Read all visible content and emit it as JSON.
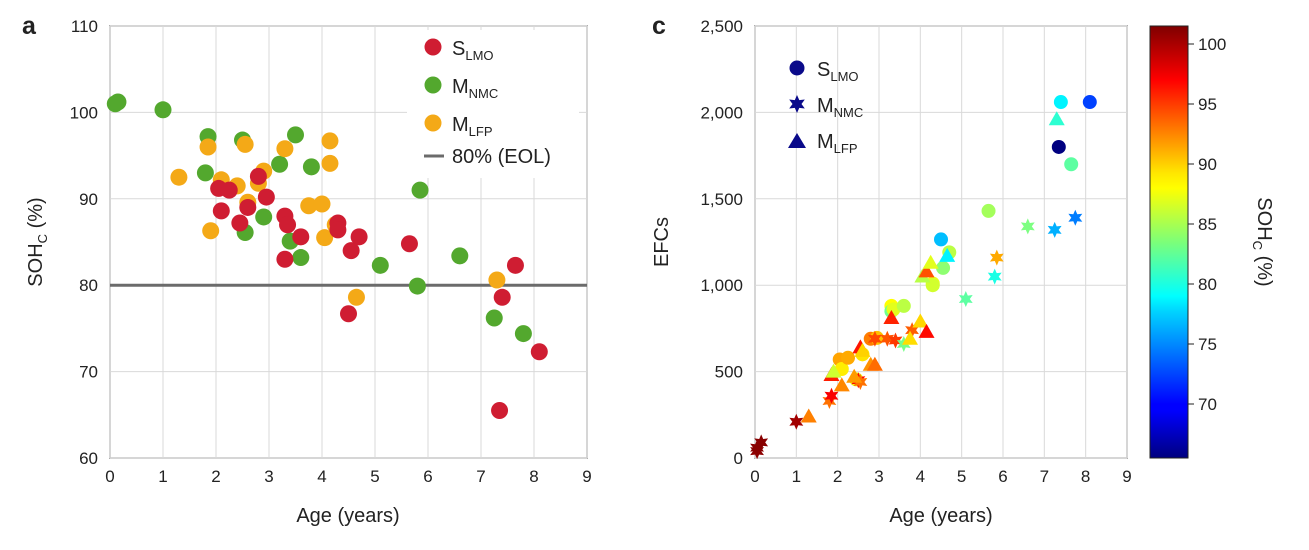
{
  "chart_data": [
    {
      "panel": "a",
      "type": "scatter",
      "xlabel": "Age (years)",
      "ylabel": {
        "main": "SOH",
        "sub": "C",
        "unit": " (%)"
      },
      "xlim": [
        0,
        9
      ],
      "ylim": [
        60,
        110
      ],
      "xticks": [
        0,
        1,
        2,
        3,
        4,
        5,
        6,
        7,
        8,
        9
      ],
      "yticks": [
        60,
        70,
        80,
        90,
        100,
        110
      ],
      "grid": true,
      "legend_position": "top-right",
      "eol_line": {
        "y": 80,
        "label": "80% (EOL)",
        "color": "#6b6b6b"
      },
      "series": [
        {
          "name": "S",
          "sub": "LMO",
          "color": "#cf1d32",
          "points": [
            [
              2.05,
              91.2
            ],
            [
              2.1,
              88.6
            ],
            [
              2.25,
              91.0
            ],
            [
              2.45,
              87.2
            ],
            [
              2.6,
              89.0
            ],
            [
              2.8,
              92.6
            ],
            [
              2.95,
              90.2
            ],
            [
              3.3,
              88.0
            ],
            [
              3.3,
              83.0
            ],
            [
              3.35,
              87.0
            ],
            [
              3.6,
              85.6
            ],
            [
              4.3,
              87.2
            ],
            [
              4.3,
              86.4
            ],
            [
              4.55,
              84.0
            ],
            [
              4.7,
              85.6
            ],
            [
              4.5,
              76.7
            ],
            [
              5.65,
              84.8
            ],
            [
              7.35,
              65.5
            ],
            [
              7.4,
              78.6
            ],
            [
              7.65,
              82.3
            ],
            [
              8.1,
              72.3
            ]
          ]
        },
        {
          "name": "M",
          "sub": "NMC",
          "color": "#53a82e",
          "points": [
            [
              0.1,
              101.0
            ],
            [
              0.15,
              101.2
            ],
            [
              1.0,
              100.3
            ],
            [
              1.8,
              93.0
            ],
            [
              1.85,
              97.2
            ],
            [
              2.5,
              96.8
            ],
            [
              2.55,
              86.1
            ],
            [
              2.9,
              87.9
            ],
            [
              3.2,
              94.0
            ],
            [
              3.4,
              85.1
            ],
            [
              3.5,
              97.4
            ],
            [
              3.6,
              83.2
            ],
            [
              3.8,
              93.7
            ],
            [
              5.1,
              82.3
            ],
            [
              5.8,
              79.9
            ],
            [
              5.85,
              91.0
            ],
            [
              6.6,
              83.4
            ],
            [
              7.25,
              76.2
            ],
            [
              7.8,
              74.4
            ]
          ]
        },
        {
          "name": "M",
          "sub": "LFP",
          "color": "#f4a917",
          "points": [
            [
              1.3,
              92.5
            ],
            [
              1.85,
              96.0
            ],
            [
              1.9,
              86.3
            ],
            [
              2.1,
              92.2
            ],
            [
              2.4,
              91.5
            ],
            [
              2.55,
              96.3
            ],
            [
              2.6,
              89.6
            ],
            [
              2.8,
              91.8
            ],
            [
              2.9,
              93.2
            ],
            [
              3.3,
              95.8
            ],
            [
              3.75,
              89.2
            ],
            [
              4.0,
              89.4
            ],
            [
              4.05,
              85.5
            ],
            [
              4.15,
              94.1
            ],
            [
              4.15,
              96.7
            ],
            [
              4.25,
              87.0
            ],
            [
              4.65,
              78.6
            ],
            [
              7.3,
              80.6
            ]
          ]
        }
      ]
    },
    {
      "panel": "c",
      "type": "scatter",
      "xlabel": "Age (years)",
      "ylabel": "EFCs",
      "xlim": [
        0,
        9
      ],
      "ylim": [
        0,
        2500
      ],
      "xticks": [
        0,
        1,
        2,
        3,
        4,
        5,
        6,
        7,
        8,
        9
      ],
      "yticks": [
        0,
        500,
        1000,
        1500,
        2000,
        2500
      ],
      "ytick_labels": [
        "0",
        "500",
        "1,000",
        "1,500",
        "2,000",
        "2,500"
      ],
      "grid": true,
      "legend_position": "top-left",
      "colorbar": {
        "label": {
          "main": "SOH",
          "sub": "C",
          "unit": " (%)"
        },
        "range": [
          65.5,
          101.5
        ],
        "ticks": [
          70,
          75,
          80,
          85,
          90,
          95,
          100
        ],
        "colormap": "jet"
      },
      "series": [
        {
          "name": "S",
          "sub": "LMO",
          "marker": "circle",
          "points": [
            [
              2.05,
              570,
              91.2
            ],
            [
              2.1,
              515,
              88.6
            ],
            [
              2.25,
              580,
              91.0
            ],
            [
              2.45,
              455,
              87.2
            ],
            [
              2.6,
              600,
              89.0
            ],
            [
              2.8,
              690,
              92.6
            ],
            [
              2.95,
              695,
              90.2
            ],
            [
              3.3,
              880,
              88.0
            ],
            [
              3.3,
              850,
              83.0
            ],
            [
              3.35,
              860,
              87.0
            ],
            [
              3.6,
              880,
              85.6
            ],
            [
              4.3,
              1010,
              87.2
            ],
            [
              4.3,
              1000,
              86.4
            ],
            [
              4.55,
              1100,
              84.0
            ],
            [
              4.7,
              1190,
              85.6
            ],
            [
              4.5,
              1265,
              76.7
            ],
            [
              5.65,
              1430,
              84.8
            ],
            [
              7.35,
              1800,
              65.5
            ],
            [
              7.4,
              2060,
              78.6
            ],
            [
              7.65,
              1700,
              82.3
            ],
            [
              8.1,
              2060,
              72.3
            ]
          ]
        },
        {
          "name": "M",
          "sub": "NMC",
          "marker": "star",
          "points": [
            [
              0.05,
              40,
              101.0
            ],
            [
              0.05,
              60,
              101.2
            ],
            [
              0.15,
              90,
              101.2
            ],
            [
              1.0,
              210,
              100.3
            ],
            [
              1.8,
              330,
              93.0
            ],
            [
              1.85,
              360,
              97.2
            ],
            [
              2.5,
              450,
              96.8
            ],
            [
              2.55,
              440,
              93.0
            ],
            [
              2.9,
              690,
              94.5
            ],
            [
              3.2,
              690,
              94.0
            ],
            [
              3.4,
              680,
              95.0
            ],
            [
              3.6,
              660,
              83.2
            ],
            [
              3.8,
              740,
              93.7
            ],
            [
              5.1,
              920,
              82.3
            ],
            [
              5.8,
              1050,
              79.9
            ],
            [
              5.85,
              1160,
              91.0
            ],
            [
              6.6,
              1340,
              83.4
            ],
            [
              7.25,
              1320,
              76.2
            ],
            [
              7.75,
              1390,
              74.4
            ]
          ]
        },
        {
          "name": "M",
          "sub": "LFP",
          "marker": "triangle",
          "points": [
            [
              1.3,
              240,
              92.5
            ],
            [
              1.85,
              480,
              96.0
            ],
            [
              1.9,
              500,
              86.3
            ],
            [
              2.1,
              420,
              92.2
            ],
            [
              2.4,
              470,
              91.5
            ],
            [
              2.55,
              640,
              96.3
            ],
            [
              2.6,
              620,
              89.6
            ],
            [
              2.8,
              540,
              91.8
            ],
            [
              2.9,
              540,
              93.2
            ],
            [
              3.3,
              810,
              95.8
            ],
            [
              3.75,
              690,
              89.2
            ],
            [
              4.0,
              790,
              89.4
            ],
            [
              4.05,
              1050,
              85.5
            ],
            [
              4.15,
              1080,
              94.1
            ],
            [
              4.15,
              730,
              96.7
            ],
            [
              4.25,
              1130,
              87.0
            ],
            [
              4.65,
              1170,
              78.6
            ],
            [
              7.3,
              1960,
              80.6
            ]
          ]
        }
      ]
    }
  ]
}
